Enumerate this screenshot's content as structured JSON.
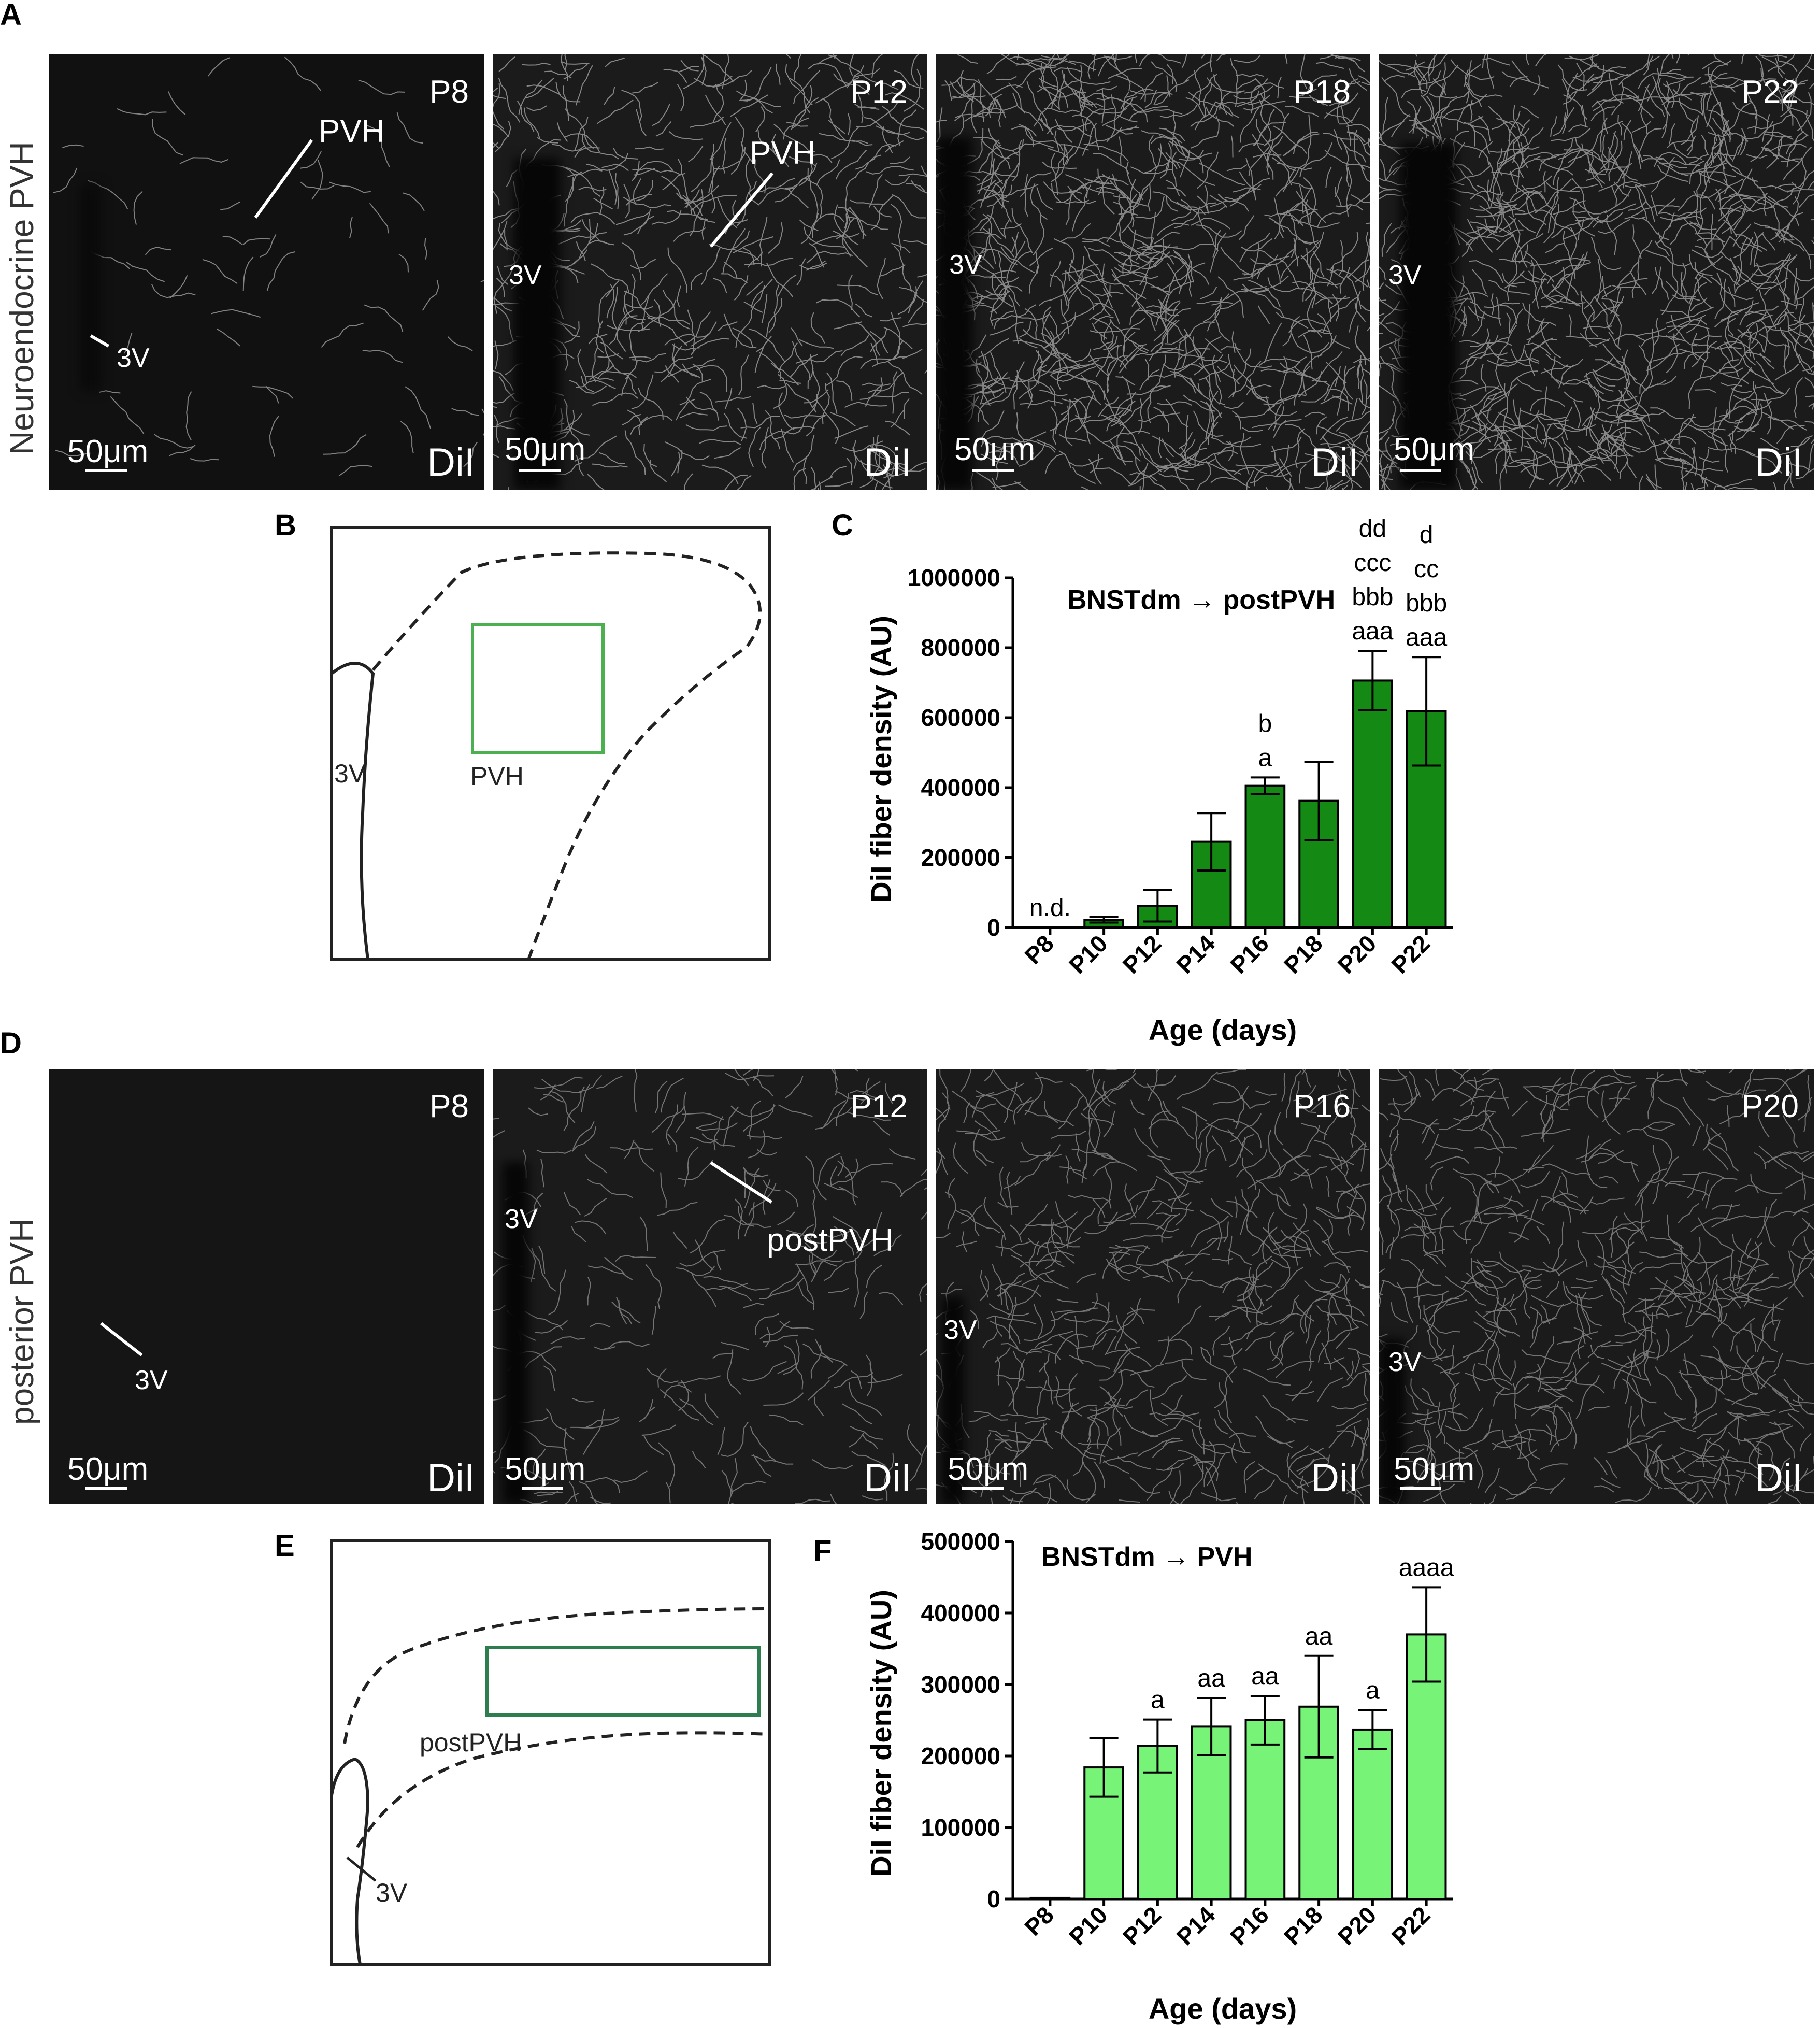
{
  "figure": {
    "panel_labels": {
      "A": "A",
      "B": "B",
      "C": "C",
      "D": "D",
      "E": "E",
      "F": "F"
    },
    "row_a": {
      "side_label": "Neuroendocrine PVH",
      "images": [
        {
          "age": "P8",
          "stain": "DiI",
          "scale": "50μm",
          "region_label": "PVH",
          "ventricle": "3V"
        },
        {
          "age": "P12",
          "stain": "DiI",
          "scale": "50μm",
          "region_label": "PVH",
          "ventricle": "3V"
        },
        {
          "age": "P18",
          "stain": "DiI",
          "scale": "50μm",
          "ventricle": "3V"
        },
        {
          "age": "P22",
          "stain": "DiI",
          "scale": "50μm",
          "ventricle": "3V"
        }
      ]
    },
    "row_d": {
      "side_label": "posterior PVH",
      "images": [
        {
          "age": "P8",
          "stain": "DiI",
          "scale": "50μm",
          "ventricle": "3V"
        },
        {
          "age": "P12",
          "stain": "DiI",
          "scale": "50μm",
          "region_label": "postPVH",
          "ventricle": "3V"
        },
        {
          "age": "P16",
          "stain": "DiI",
          "scale": "50μm",
          "ventricle": "3V"
        },
        {
          "age": "P20",
          "stain": "DiI",
          "scale": "50μm",
          "ventricle": "3V"
        }
      ]
    },
    "schematic_b": {
      "ventricle": "3V",
      "region": "PVH",
      "box_color": "#4caf50"
    },
    "schematic_e": {
      "ventricle": "3V",
      "region": "postPVH",
      "box_color": "#2e7d4f"
    }
  },
  "chart_data": [
    {
      "type": "bar",
      "panel": "C",
      "title": "BNSTdm → postPVH",
      "xlabel": "Age (days)",
      "ylabel": "DiI fiber density (AU)",
      "categories": [
        "P8",
        "P10",
        "P12",
        "P14",
        "P16",
        "P18",
        "P20",
        "P22"
      ],
      "values": [
        0,
        22000,
        62000,
        245000,
        405000,
        362000,
        706000,
        618000
      ],
      "errors": [
        0,
        8000,
        45000,
        82000,
        24000,
        112000,
        85000,
        155000
      ],
      "annotations": [
        [
          "n.d."
        ],
        [],
        [],
        [],
        [
          "b",
          "a"
        ],
        [],
        [
          "dd",
          "ccc",
          "bbb",
          "aaa"
        ],
        [
          "d",
          "cc",
          "bbb",
          "aaa"
        ]
      ],
      "ylim": [
        0,
        1000000
      ],
      "yticks": [
        "0",
        "200000",
        "400000",
        "600000",
        "800000",
        "1000000"
      ],
      "bar_color": "#148a14"
    },
    {
      "type": "bar",
      "panel": "F",
      "title": "BNSTdm → PVH",
      "xlabel": "Age (days)",
      "ylabel": "DiI fiber density (AU)",
      "categories": [
        "P8",
        "P10",
        "P12",
        "P14",
        "P16",
        "P18",
        "P20",
        "P22"
      ],
      "values": [
        1500,
        184000,
        214000,
        241000,
        250000,
        269000,
        237000,
        370000
      ],
      "errors": [
        0,
        41000,
        37000,
        40000,
        34000,
        71000,
        27000,
        66000
      ],
      "annotations": [
        [],
        [],
        [
          "a"
        ],
        [
          "aa"
        ],
        [
          "aa"
        ],
        [
          "aa"
        ],
        [
          "a"
        ],
        [
          "aaaa"
        ]
      ],
      "ylim": [
        0,
        500000
      ],
      "yticks": [
        "0",
        "100000",
        "200000",
        "300000",
        "400000",
        "500000"
      ],
      "bar_color": "#77f477"
    }
  ]
}
